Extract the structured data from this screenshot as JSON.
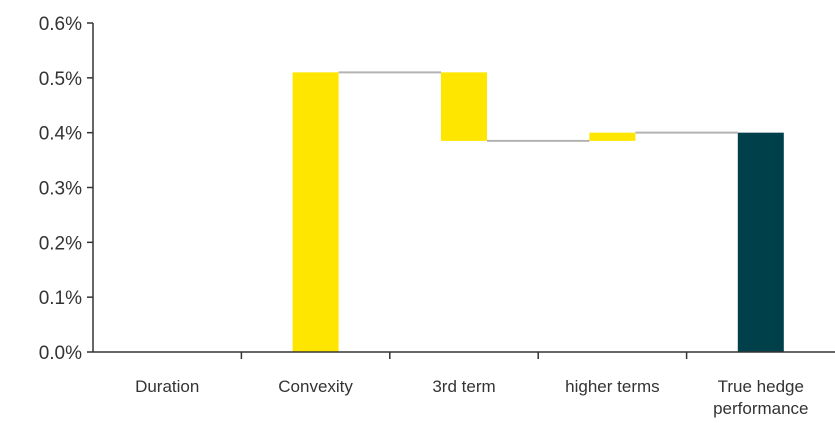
{
  "chart_data": {
    "type": "bar",
    "subtype": "waterfall",
    "title": "",
    "xlabel": "",
    "ylabel": "",
    "categories": [
      [
        "Duration"
      ],
      [
        "Convexity"
      ],
      [
        "3rd term"
      ],
      [
        "higher terms"
      ],
      [
        "True hedge",
        "performance"
      ]
    ],
    "ylim": [
      0,
      0.006
    ],
    "yticks": [
      {
        "value": 0.0,
        "label": "0.0%"
      },
      {
        "value": 0.001,
        "label": "0.1%"
      },
      {
        "value": 0.002,
        "label": "0.2%"
      },
      {
        "value": 0.003,
        "label": "0.3%"
      },
      {
        "value": 0.004,
        "label": "0.4%"
      },
      {
        "value": 0.005,
        "label": "0.5%"
      },
      {
        "value": 0.006,
        "label": "0.6%"
      }
    ],
    "bars": [
      {
        "category": "Duration",
        "start": 0.0,
        "end": 0.0,
        "kind": "change"
      },
      {
        "category": "Convexity",
        "start": 0.0,
        "end": 0.0051,
        "kind": "change"
      },
      {
        "category": "3rd term",
        "start": 0.0051,
        "end": 0.00385,
        "kind": "change"
      },
      {
        "category": "higher terms",
        "start": 0.00385,
        "end": 0.004,
        "kind": "change"
      },
      {
        "category": "True hedge performance",
        "start": 0.0,
        "end": 0.004,
        "kind": "total"
      }
    ],
    "grid": false,
    "legend": "none",
    "colors": {
      "change": "#FFE600",
      "total": "#00404A",
      "connector": "#b3b3b3",
      "axis": "#333333",
      "text": "#333333"
    }
  }
}
